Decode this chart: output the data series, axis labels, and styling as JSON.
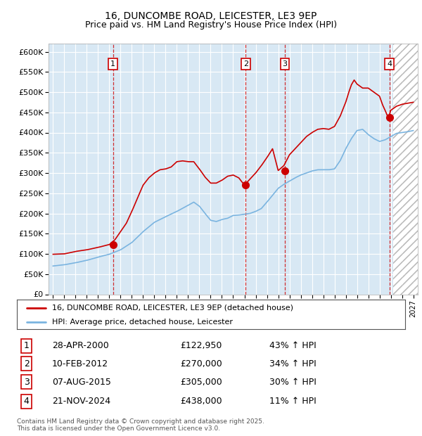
{
  "title": "16, DUNCOMBE ROAD, LEICESTER, LE3 9EP",
  "subtitle": "Price paid vs. HM Land Registry's House Price Index (HPI)",
  "ylim": [
    0,
    620000
  ],
  "ytick_labels": [
    "£0",
    "£50K",
    "£100K",
    "£150K",
    "£200K",
    "£250K",
    "£300K",
    "£350K",
    "£400K",
    "£450K",
    "£500K",
    "£550K",
    "£600K"
  ],
  "xlim_start": 1994.6,
  "xlim_end": 2027.4,
  "bg_color": "#d8e8f4",
  "grid_color": "#ffffff",
  "hpi_color": "#7ab4e0",
  "price_color": "#cc0000",
  "legend_label_red": "16, DUNCOMBE ROAD, LEICESTER, LE3 9EP (detached house)",
  "legend_label_blue": "HPI: Average price, detached house, Leicester",
  "footer_text": "Contains HM Land Registry data © Crown copyright and database right 2025.\nThis data is licensed under the Open Government Licence v3.0.",
  "sales": [
    {
      "num": 1,
      "date": "28-APR-2000",
      "year": 2000.32,
      "price": 122950,
      "pct": "43%",
      "dir": "↑"
    },
    {
      "num": 2,
      "date": "10-FEB-2012",
      "year": 2012.12,
      "price": 270000,
      "pct": "34%",
      "dir": "↑"
    },
    {
      "num": 3,
      "date": "07-AUG-2015",
      "year": 2015.6,
      "price": 305000,
      "pct": "30%",
      "dir": "↑"
    },
    {
      "num": 4,
      "date": "21-NOV-2024",
      "year": 2024.89,
      "price": 438000,
      "pct": "11%",
      "dir": "↑"
    }
  ],
  "blue_knots_x": [
    1995,
    1996,
    1997,
    1998,
    1999,
    2000,
    2001,
    2002,
    2003,
    2004,
    2005,
    2006,
    2007,
    2007.5,
    2008,
    2008.5,
    2009,
    2009.5,
    2010,
    2010.5,
    2011,
    2011.5,
    2012,
    2012.5,
    2013,
    2013.5,
    2014,
    2014.5,
    2015,
    2015.5,
    2016,
    2016.5,
    2017,
    2017.5,
    2018,
    2018.5,
    2019,
    2019.5,
    2020,
    2020.5,
    2021,
    2021.5,
    2022,
    2022.5,
    2023,
    2023.5,
    2024,
    2024.5,
    2025,
    2025.5,
    2026,
    2026.5,
    2027
  ],
  "blue_knots_y": [
    70000,
    73000,
    78000,
    84000,
    92000,
    99000,
    110000,
    128000,
    155000,
    178000,
    192000,
    205000,
    220000,
    228000,
    218000,
    200000,
    183000,
    180000,
    185000,
    188000,
    195000,
    196000,
    198000,
    200000,
    205000,
    212000,
    228000,
    245000,
    262000,
    272000,
    280000,
    288000,
    295000,
    300000,
    305000,
    308000,
    308000,
    308000,
    310000,
    330000,
    360000,
    385000,
    405000,
    408000,
    395000,
    385000,
    378000,
    382000,
    390000,
    398000,
    400000,
    402000,
    405000
  ],
  "red_knots_x": [
    1995,
    1996,
    1997,
    1998,
    1999,
    2000,
    2000.5,
    2001,
    2001.5,
    2002,
    2002.5,
    2003,
    2003.5,
    2004,
    2004.5,
    2005,
    2005.5,
    2006,
    2006.5,
    2007,
    2007.5,
    2008,
    2008.5,
    2009,
    2009.5,
    2010,
    2010.5,
    2011,
    2011.5,
    2012,
    2012.5,
    2013,
    2013.5,
    2014,
    2014.5,
    2015,
    2015.5,
    2016,
    2016.5,
    2017,
    2017.5,
    2018,
    2018.5,
    2019,
    2019.5,
    2020,
    2020.5,
    2021,
    2021.25,
    2021.5,
    2021.75,
    2022,
    2022.25,
    2022.5,
    2022.75,
    2023,
    2023.25,
    2023.5,
    2023.75,
    2024,
    2024.25,
    2024.5,
    2024.75,
    2024.89,
    2025,
    2025.5,
    2026,
    2027
  ],
  "red_knots_y": [
    99000,
    100000,
    106000,
    110000,
    116000,
    123000,
    135000,
    155000,
    175000,
    205000,
    238000,
    270000,
    288000,
    300000,
    308000,
    310000,
    315000,
    328000,
    330000,
    328000,
    328000,
    310000,
    290000,
    275000,
    275000,
    282000,
    292000,
    295000,
    288000,
    270000,
    285000,
    300000,
    318000,
    338000,
    360000,
    306000,
    318000,
    345000,
    360000,
    375000,
    390000,
    400000,
    408000,
    410000,
    408000,
    415000,
    440000,
    475000,
    498000,
    518000,
    530000,
    520000,
    515000,
    510000,
    510000,
    510000,
    505000,
    500000,
    495000,
    490000,
    470000,
    455000,
    438000,
    445000,
    455000,
    465000,
    470000,
    475000
  ]
}
